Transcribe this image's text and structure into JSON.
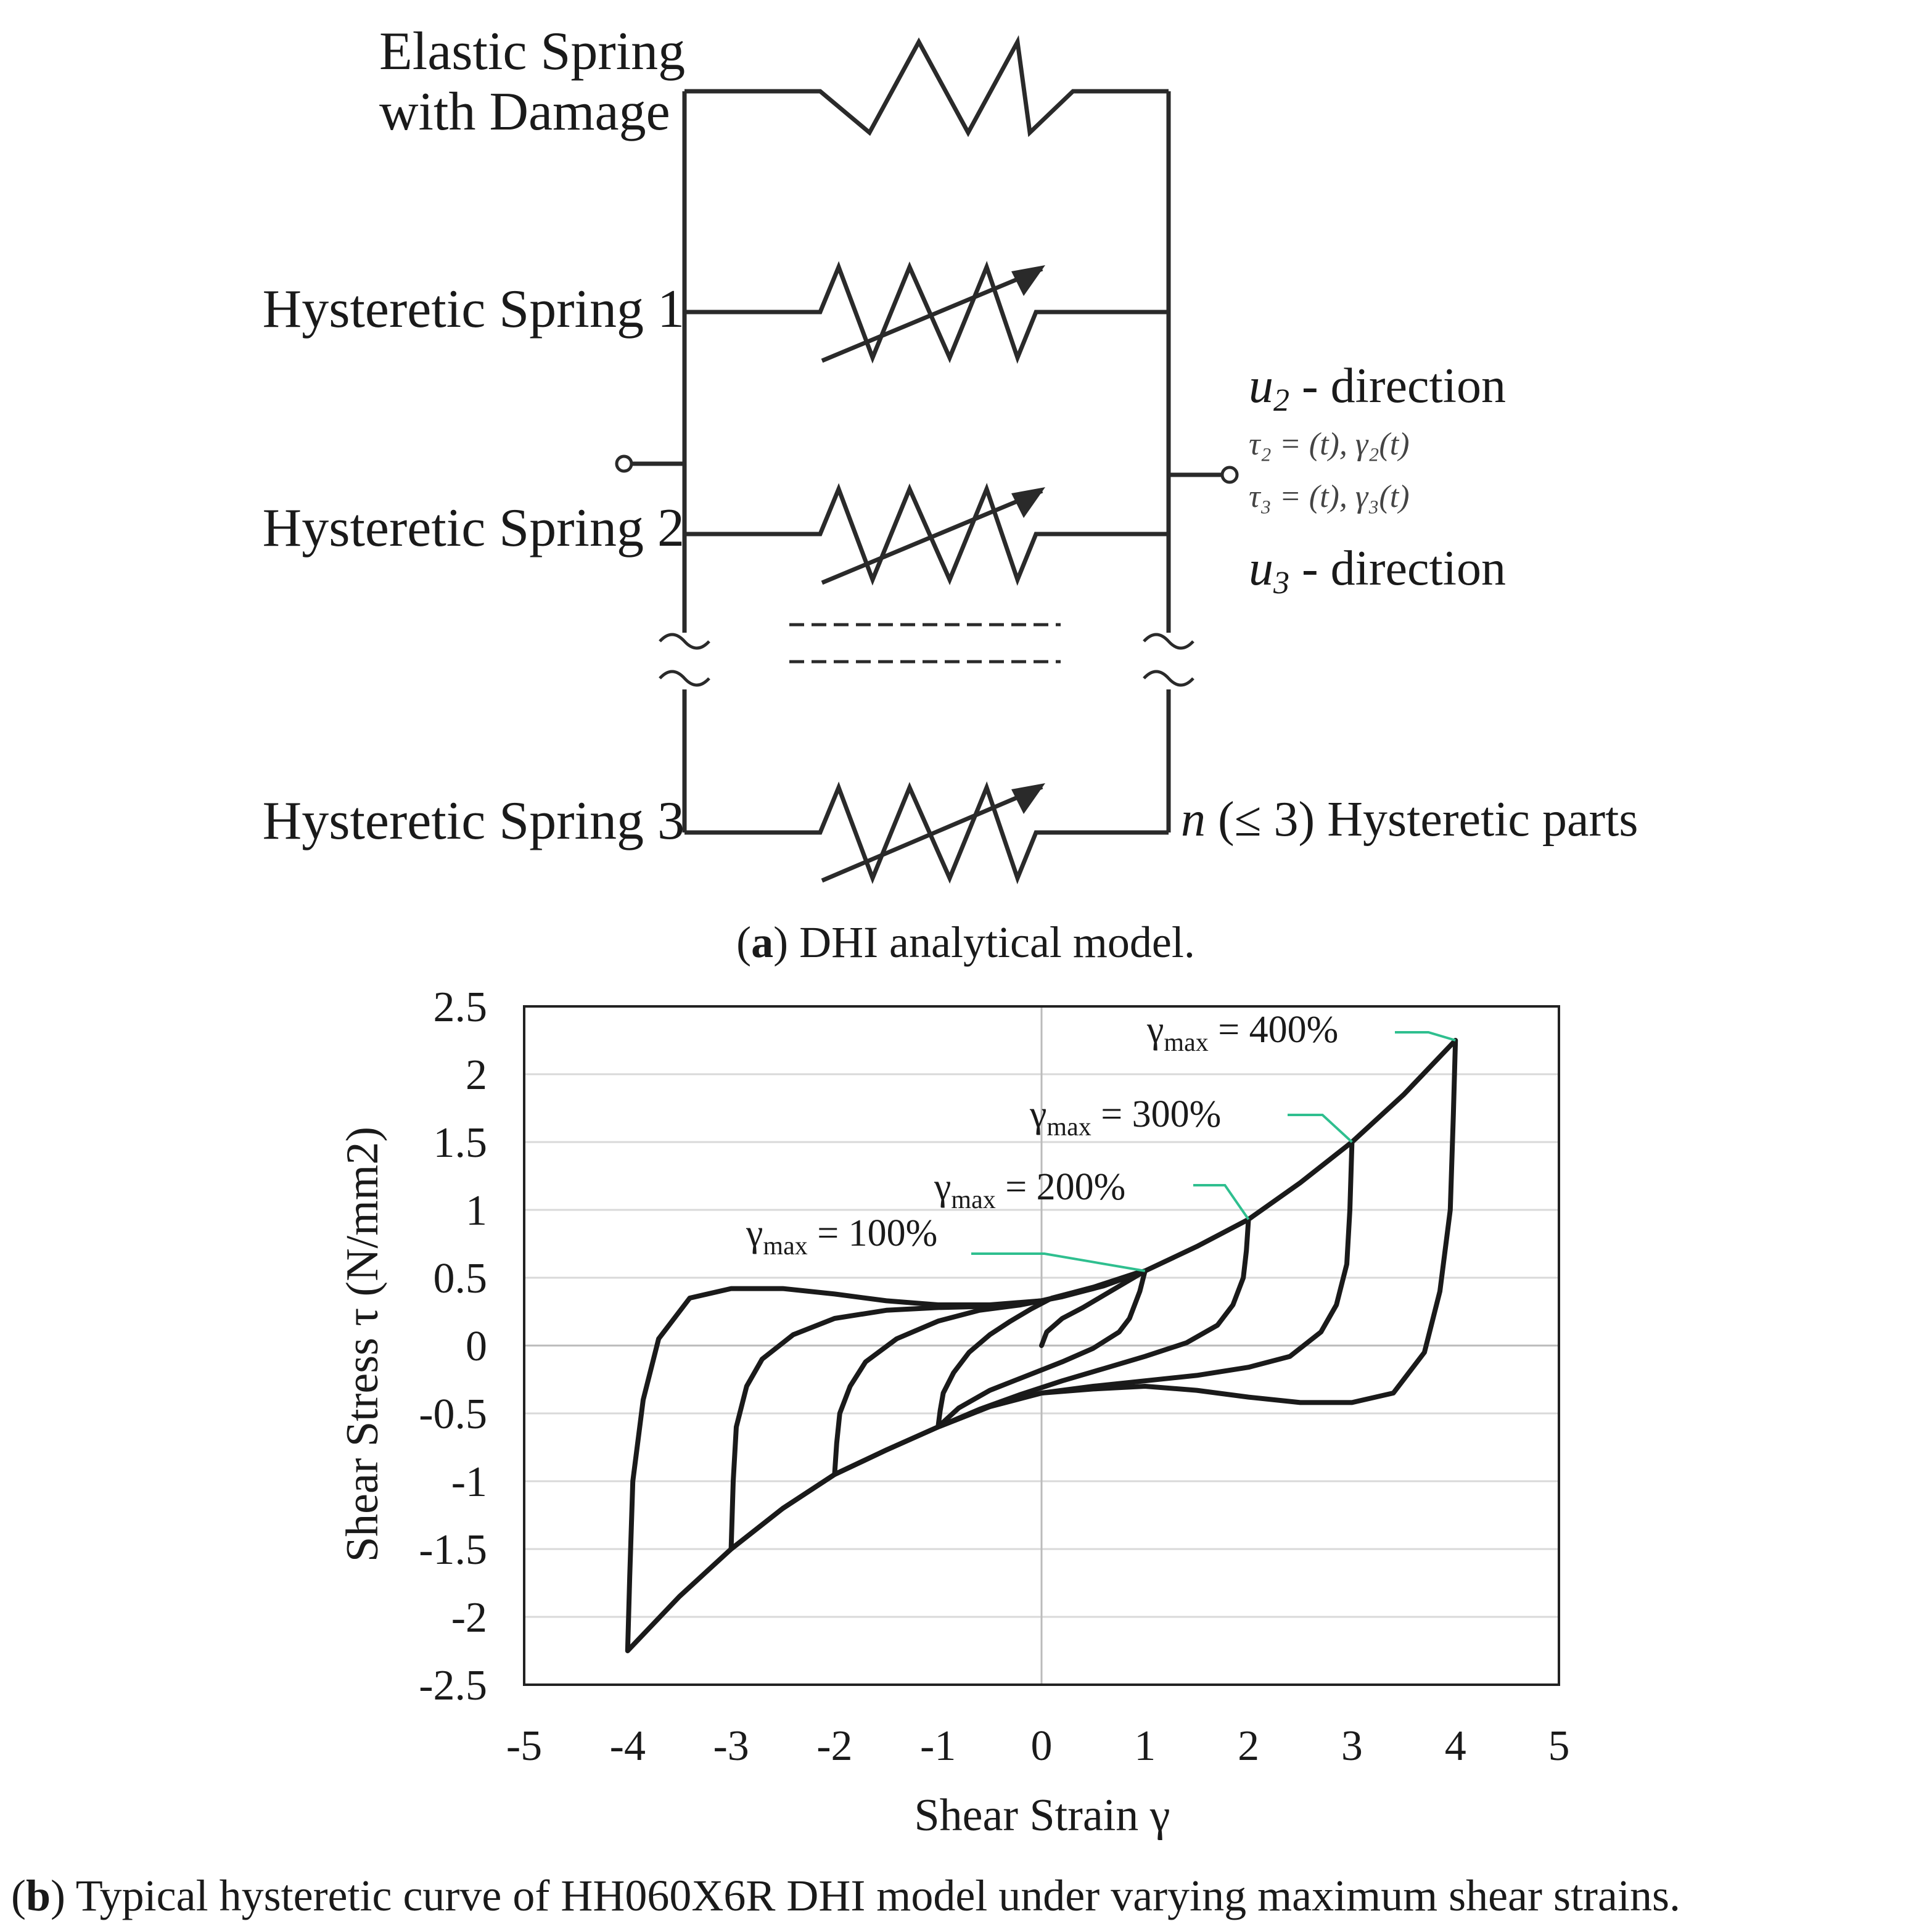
{
  "part_a": {
    "labels": {
      "elastic_line1": "Elastic Spring",
      "elastic_line2": "with Damage",
      "spring1": "Hysteretic Spring 1",
      "spring2": "Hysteretic Spring 2",
      "spring3": "Hysteretic Spring 3"
    },
    "right": {
      "u2_sym": "u",
      "u2_sub": "2",
      "u2_text": " - direction",
      "tau2": "τ₂ = (t), γ₂(t)",
      "tau3": "τ₃ = (t), γ₃(t)",
      "u3_sym": "u",
      "u3_sub": "3",
      "u3_text": " - direction",
      "n_sym": "n",
      "n_text": " (≤ 3) Hysteretic parts"
    },
    "caption_letter": "a",
    "caption_text": ") DHI analytical model."
  },
  "chart_data": {
    "type": "line",
    "title": "",
    "xlabel": "Shear Strain γ",
    "ylabel": "Shear Stress τ (N/mm2)",
    "xlim": [
      -5,
      5
    ],
    "ylim": [
      -2.5,
      2.5
    ],
    "xticks": [
      -5,
      -4,
      -3,
      -2,
      -1,
      0,
      1,
      2,
      3,
      4,
      5
    ],
    "yticks": [
      2.5,
      2,
      1.5,
      1,
      0.5,
      0,
      -0.5,
      -1,
      -1.5,
      -2,
      -2.5
    ],
    "xtick_labels": [
      "-5",
      "-4",
      "-3",
      "-2",
      "-1",
      "0",
      "1",
      "2",
      "3",
      "4",
      "5"
    ],
    "ytick_labels": [
      "2.5",
      "2",
      "1.5",
      "1",
      "0.5",
      "0",
      "-0.5",
      "-1",
      "-1.5",
      "-2",
      "-2.5"
    ],
    "grid": "horizontal",
    "series": [
      {
        "name": "γmax = 100%",
        "x": [
          0,
          0.05,
          0.2,
          0.4,
          0.6,
          0.8,
          1.0,
          0.95,
          0.9,
          0.85,
          0.75,
          0.5,
          0.2,
          0.0,
          -0.2,
          -0.5,
          -0.8,
          -1.0,
          -0.98,
          -0.95,
          -0.85,
          -0.7,
          -0.5,
          -0.3,
          -0.1,
          0.1,
          0.3,
          0.5,
          0.7,
          0.9,
          1.0
        ],
        "y": [
          0,
          0.1,
          0.2,
          0.28,
          0.37,
          0.46,
          0.55,
          0.4,
          0.3,
          0.2,
          0.1,
          -0.02,
          -0.12,
          -0.18,
          -0.24,
          -0.33,
          -0.46,
          -0.6,
          -0.48,
          -0.35,
          -0.2,
          -0.05,
          0.08,
          0.18,
          0.27,
          0.35,
          0.39,
          0.43,
          0.48,
          0.53,
          0.55
        ]
      },
      {
        "name": "γmax = 200%",
        "x": [
          1.0,
          1.5,
          2.0,
          1.98,
          1.95,
          1.85,
          1.7,
          1.4,
          1.0,
          0.6,
          0.2,
          -0.2,
          -0.6,
          -1.0,
          -1.5,
          -2.0,
          -1.98,
          -1.95,
          -1.85,
          -1.7,
          -1.4,
          -1.0,
          -0.6,
          -0.2,
          0.2,
          0.6,
          1.0
        ],
        "y": [
          0.55,
          0.73,
          0.93,
          0.7,
          0.5,
          0.3,
          0.15,
          0.02,
          -0.08,
          -0.17,
          -0.26,
          -0.36,
          -0.47,
          -0.6,
          -0.77,
          -0.95,
          -0.72,
          -0.5,
          -0.3,
          -0.12,
          0.05,
          0.18,
          0.26,
          0.3,
          0.36,
          0.44,
          0.55
        ]
      },
      {
        "name": "γmax = 300%",
        "x": [
          2.0,
          2.5,
          3.0,
          2.98,
          2.95,
          2.85,
          2.7,
          2.4,
          2.0,
          1.5,
          1.0,
          0.5,
          0.0,
          -0.5,
          -1.0,
          -1.5,
          -2.0,
          -2.5,
          -3.0,
          -2.98,
          -2.95,
          -2.85,
          -2.7,
          -2.4,
          -2.0,
          -1.5,
          -1.0,
          -0.5,
          0.0,
          0.5,
          1.0
        ],
        "y": [
          0.93,
          1.2,
          1.5,
          1.0,
          0.6,
          0.3,
          0.1,
          -0.08,
          -0.16,
          -0.22,
          -0.26,
          -0.3,
          -0.35,
          -0.45,
          -0.6,
          -0.77,
          -0.95,
          -1.2,
          -1.5,
          -1.0,
          -0.6,
          -0.3,
          -0.1,
          0.08,
          0.2,
          0.26,
          0.28,
          0.29,
          0.33,
          0.42,
          0.55
        ]
      },
      {
        "name": "γmax = 400%",
        "x": [
          3.0,
          3.5,
          4.0,
          3.98,
          3.95,
          3.85,
          3.7,
          3.4,
          3.0,
          2.5,
          2.0,
          1.5,
          1.0,
          0.5,
          0.0,
          -0.5,
          -1.0,
          -1.5,
          -2.0,
          -2.5,
          -3.0,
          -3.5,
          -4.0,
          -3.98,
          -3.95,
          -3.85,
          -3.7,
          -3.4,
          -3.0,
          -2.5,
          -2.0,
          -1.5,
          -1.0,
          -0.5,
          0.0,
          0.5,
          1.0
        ],
        "y": [
          1.5,
          1.85,
          2.25,
          1.7,
          1.0,
          0.4,
          -0.05,
          -0.35,
          -0.42,
          -0.42,
          -0.38,
          -0.33,
          -0.3,
          -0.32,
          -0.35,
          -0.45,
          -0.6,
          -0.77,
          -0.95,
          -1.2,
          -1.5,
          -1.85,
          -2.25,
          -1.7,
          -1.0,
          -0.4,
          0.05,
          0.35,
          0.42,
          0.42,
          0.38,
          0.33,
          0.3,
          0.3,
          0.33,
          0.42,
          0.55
        ]
      }
    ],
    "annotations": [
      {
        "text": "γmax = 100%",
        "x": 1.0,
        "y": 0.55
      },
      {
        "text": "γmax = 200%",
        "x": 2.0,
        "y": 0.93
      },
      {
        "text": "γmax = 300%",
        "x": 3.0,
        "y": 1.5
      },
      {
        "text": "γmax = 400%",
        "x": 4.0,
        "y": 2.25
      }
    ]
  },
  "part_b": {
    "caption_letter": "b",
    "caption_text": ") Typical hysteretic curve of HH060X6R DHI model under varying maximum shear strains.",
    "ann_gamma": "γ",
    "ann_sub": "max",
    "ann_values": [
      " = 100%",
      " = 200%",
      " = 300%",
      " = 400%"
    ]
  },
  "colors": {
    "line": "#1a1a1a",
    "leader": "#2fbf8f",
    "grid": "#d9d9d9",
    "axis": "#222222"
  }
}
